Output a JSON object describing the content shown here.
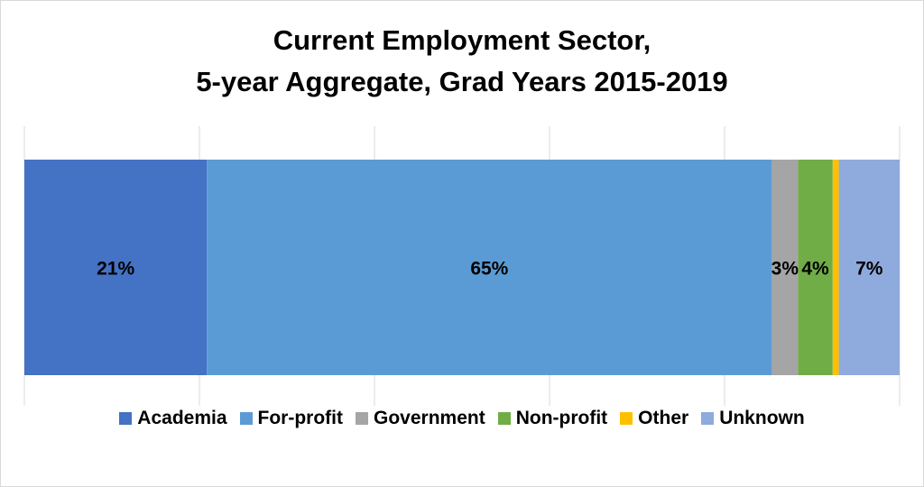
{
  "chart_data": {
    "type": "bar",
    "orientation": "horizontal-stacked-100",
    "title_lines": [
      "Current Employment Sector,",
      "5-year Aggregate, Grad Years 2015-2019"
    ],
    "categories": [
      ""
    ],
    "xlim": [
      0,
      100
    ],
    "grid": true,
    "legend_position": "bottom",
    "series": [
      {
        "name": "Academia",
        "values": [
          21
        ],
        "label": "21%",
        "color": "#4472c4"
      },
      {
        "name": "For-profit",
        "values": [
          65
        ],
        "label": "65%",
        "color": "#5b9bd5"
      },
      {
        "name": "Government",
        "values": [
          3
        ],
        "label": "3%",
        "color": "#a5a5a5"
      },
      {
        "name": "Non-profit",
        "values": [
          4
        ],
        "label": "4%",
        "color": "#70ad47"
      },
      {
        "name": "Other",
        "values": [
          0.7
        ],
        "label": "",
        "color": "#ffc000"
      },
      {
        "name": "Unknown",
        "values": [
          7
        ],
        "label": "7%",
        "color": "#8faadc"
      }
    ]
  }
}
